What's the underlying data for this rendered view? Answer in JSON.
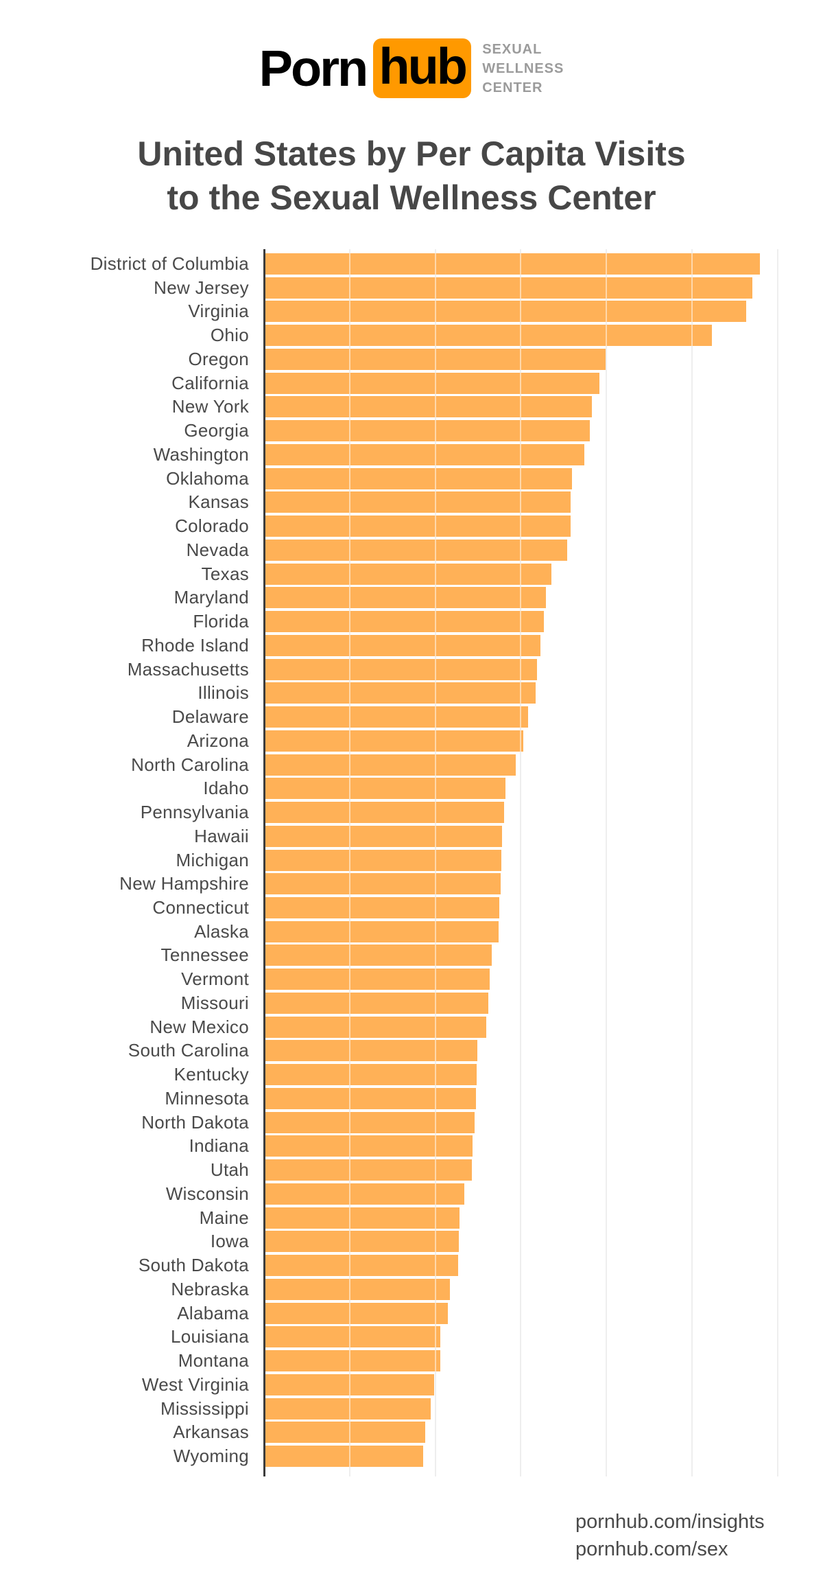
{
  "logo": {
    "brand_left": "Porn",
    "brand_right": "hub",
    "box_color": "#FF9900",
    "brand_text_color": "#000000",
    "subtitle_lines": [
      "SEXUAL",
      "WELLNESS",
      "CENTER"
    ],
    "subtitle_color": "#9B9B9B"
  },
  "title": {
    "line1": "United States by Per Capita Visits",
    "line2": "to the Sexual Wellness Center",
    "color": "#474747"
  },
  "chart_data": {
    "type": "bar",
    "orientation": "horizontal",
    "title": "United States by Per Capita Visits to the Sexual Wellness Center",
    "xlabel": "",
    "ylabel": "",
    "value_unit": "relative per-capita visits, estimated from bar lengths (top state = 100)",
    "x_axis": {
      "min": 0,
      "max": 105.8,
      "gridline_step_value": 17.24,
      "tick_labels_visible": false
    },
    "grid": "vertical gridlines only, unlabeled",
    "legend": "none",
    "bar_color": "#FFB157",
    "gridline_color": "#DCDCDC",
    "axis_line_color": "#3C3C3C",
    "label_color": "#4A4A4A",
    "categories": [
      "District of Columbia",
      "New Jersey",
      "Virginia",
      "Ohio",
      "Oregon",
      "California",
      "New York",
      "Georgia",
      "Washington",
      "Oklahoma",
      "Kansas",
      "Colorado",
      "Nevada",
      "Texas",
      "Maryland",
      "Florida",
      "Rhode Island",
      "Massachusetts",
      "Illinois",
      "Delaware",
      "Arizona",
      "North Carolina",
      "Idaho",
      "Pennsylvania",
      "Hawaii",
      "Michigan",
      "New Hampshire",
      "Connecticut",
      "Alaska",
      "Tennessee",
      "Vermont",
      "Missouri",
      "New Mexico",
      "South Carolina",
      "Kentucky",
      "Minnesota",
      "North Dakota",
      "Indiana",
      "Utah",
      "Wisconsin",
      "Maine",
      "Iowa",
      "South Dakota",
      "Nebraska",
      "Alabama",
      "Louisiana",
      "Montana",
      "West Virginia",
      "Mississippi",
      "Arkansas",
      "Wyoming"
    ],
    "values": [
      100,
      98.5,
      97.2,
      90.3,
      68.9,
      67.7,
      66.2,
      65.7,
      64.6,
      62.2,
      61.9,
      61.9,
      61.2,
      58.0,
      56.9,
      56.5,
      55.8,
      55.1,
      54.8,
      53.3,
      52.3,
      50.8,
      48.8,
      48.5,
      48.1,
      47.9,
      47.8,
      47.5,
      47.4,
      46.0,
      45.6,
      45.3,
      44.9,
      43.1,
      43.0,
      42.8,
      42.5,
      42.1,
      42.0,
      40.5,
      39.5,
      39.4,
      39.2,
      37.6,
      37.2,
      35.6,
      35.6,
      34.4,
      33.7,
      32.6,
      32.2
    ]
  },
  "footer": {
    "line1": "pornhub.com/insights",
    "line2": "pornhub.com/sex",
    "color": "#4A4A4A"
  }
}
